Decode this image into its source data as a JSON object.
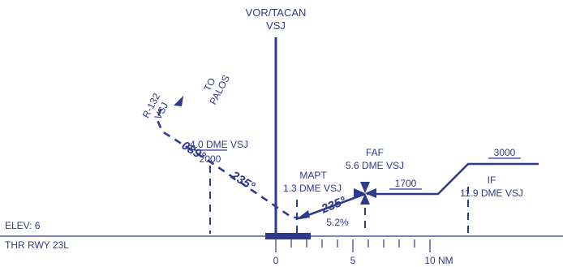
{
  "diagram": {
    "colors": {
      "ink": "#2e3a8c",
      "background": "#ffffff"
    },
    "facility": {
      "line1": "VOR/TACAN",
      "line2": "VSJ"
    },
    "radial": {
      "line1": "R-132",
      "line2": "VSJ"
    },
    "to_fix": {
      "line1": "TO",
      "line2": "PALOS"
    },
    "course_089": "089°",
    "course_235_upper": "235°",
    "course_235_lower": "235°",
    "step_fix": {
      "dme": "4.0 DME VSJ",
      "altitude": "2000"
    },
    "mapt": {
      "name": "MAPT",
      "dme": "1.3 DME VSJ"
    },
    "gradient": "5.2%",
    "faf": {
      "name": "FAF",
      "dme": "5.6 DME VSJ"
    },
    "faf_altitude": "1700",
    "if_fix": {
      "name": "IF",
      "dme": "11.9 DME VSJ",
      "altitude": "3000"
    },
    "elevation": "ELEV: 6",
    "threshold": "THR RWY 23L",
    "scale": {
      "zero": "0",
      "five": "5",
      "ten": "10 NM"
    }
  }
}
